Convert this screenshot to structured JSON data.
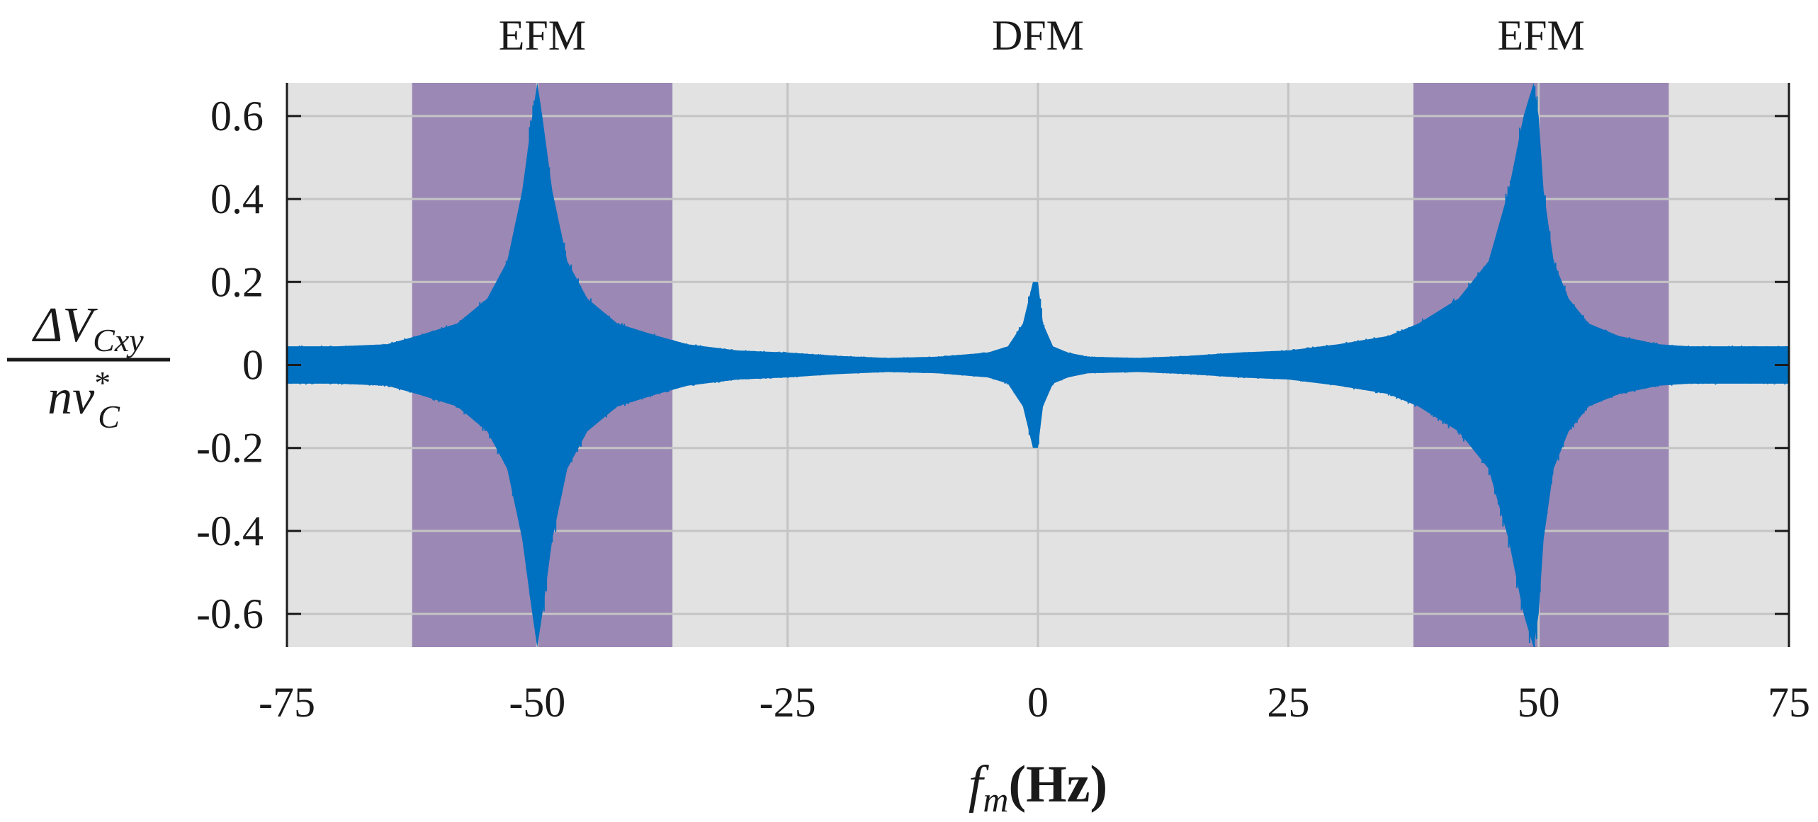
{
  "chart_data": {
    "type": "line",
    "title": "",
    "xlabel": {
      "variable": "f",
      "subscript": "m",
      "unit": "(Hz)"
    },
    "ylabel": {
      "numerator": {
        "prefix": "ΔV",
        "subscript": "Cxy"
      },
      "denominator": {
        "prefix": "nv",
        "superscript": "*",
        "subscript": "C"
      }
    },
    "xlim": [
      -75,
      75
    ],
    "ylim": [
      -0.68,
      0.68
    ],
    "xticks": [
      -75,
      -50,
      -25,
      0,
      25,
      50,
      75
    ],
    "xtick_labels": [
      "-75",
      "-50",
      "-25",
      "0",
      "25",
      "50",
      "75"
    ],
    "yticks": [
      -0.6,
      -0.4,
      -0.2,
      0,
      0.2,
      0.4,
      0.6
    ],
    "ytick_labels": [
      "-0.6",
      "-0.4",
      "-0.2",
      "0",
      "0.2",
      "0.4",
      "0.6"
    ],
    "grid": true,
    "background_color": "#e2e2e2",
    "grid_color": "#c4c4c4",
    "series": [
      {
        "name": "ΔV_Cxy / nv*_C envelope",
        "color": "#0070c0",
        "f": [
          -75,
          -70,
          -65,
          -62,
          -58,
          -55,
          -53,
          -51.5,
          -50.5,
          -50,
          -49.5,
          -48.5,
          -47,
          -45,
          -42,
          -38,
          -35,
          -30,
          -25,
          -20,
          -15,
          -10,
          -5,
          -3,
          -1.5,
          -0.5,
          0,
          0.5,
          1.5,
          3,
          5,
          10,
          15,
          20,
          25,
          30,
          35,
          38,
          42,
          45,
          47,
          48.5,
          49.5,
          50,
          50.5,
          51.5,
          53,
          55,
          58,
          62,
          65,
          70,
          75
        ],
        "upper": [
          0.045,
          0.045,
          0.05,
          0.07,
          0.1,
          0.16,
          0.25,
          0.42,
          0.6,
          0.68,
          0.6,
          0.42,
          0.25,
          0.16,
          0.1,
          0.07,
          0.05,
          0.035,
          0.03,
          0.022,
          0.017,
          0.02,
          0.03,
          0.045,
          0.1,
          0.2,
          0.2,
          0.1,
          0.045,
          0.03,
          0.02,
          0.017,
          0.022,
          0.03,
          0.035,
          0.05,
          0.07,
          0.1,
          0.16,
          0.25,
          0.42,
          0.6,
          0.68,
          0.6,
          0.42,
          0.25,
          0.16,
          0.1,
          0.07,
          0.05,
          0.045,
          0.045,
          0.045
        ],
        "lower": [
          -0.045,
          -0.045,
          -0.05,
          -0.07,
          -0.1,
          -0.16,
          -0.25,
          -0.42,
          -0.6,
          -0.68,
          -0.6,
          -0.42,
          -0.25,
          -0.16,
          -0.1,
          -0.07,
          -0.05,
          -0.035,
          -0.03,
          -0.022,
          -0.017,
          -0.02,
          -0.03,
          -0.045,
          -0.1,
          -0.2,
          -0.2,
          -0.1,
          -0.045,
          -0.03,
          -0.02,
          -0.017,
          -0.022,
          -0.03,
          -0.035,
          -0.05,
          -0.07,
          -0.1,
          -0.16,
          -0.25,
          -0.42,
          -0.6,
          -0.68,
          -0.6,
          -0.42,
          -0.25,
          -0.16,
          -0.1,
          -0.07,
          -0.05,
          -0.045,
          -0.045,
          -0.045
        ]
      }
    ],
    "regions": [
      {
        "label": "EFM",
        "x_start": -62.5,
        "x_end": -36.5,
        "shaded": true,
        "color": "#9b88b5"
      },
      {
        "label": "DFM",
        "x_start": -36.5,
        "x_end": 37.5,
        "shaded": false,
        "color": "#e2e2e2"
      },
      {
        "label": "EFM",
        "x_start": 37.5,
        "x_end": 63,
        "shaded": true,
        "color": "#9b88b5"
      }
    ]
  }
}
